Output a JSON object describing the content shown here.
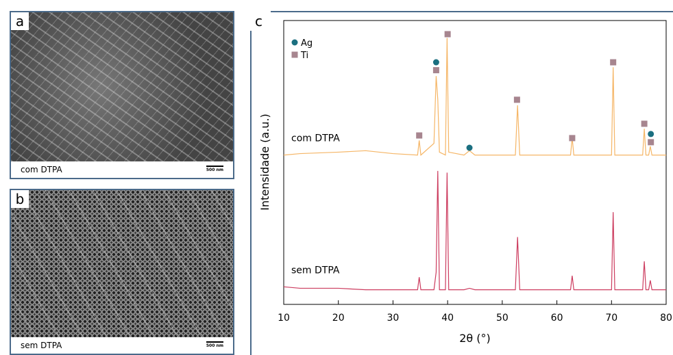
{
  "panels": [
    {
      "label": "a",
      "caption": "com DTPA",
      "scale_bar": "500 nm"
    },
    {
      "label": "b",
      "caption": "sem DTPA",
      "scale_bar": "500 nm"
    }
  ],
  "chart_data": {
    "type": "line",
    "panel_label": "c",
    "x_label": "2θ (°)",
    "y_label": "Intensidade (a.u.)",
    "xlim": [
      10,
      80
    ],
    "xticks": [
      10,
      20,
      30,
      40,
      50,
      60,
      70,
      80
    ],
    "ylim": [
      0,
      100
    ],
    "x": [
      10,
      13,
      20,
      25,
      30,
      34.5,
      34.8,
      35.1,
      37.5,
      37.9,
      38.2,
      38.5,
      39.6,
      39.9,
      40.2,
      43,
      44,
      45,
      52.4,
      52.8,
      53.2,
      62.5,
      62.8,
      63.1,
      70,
      70.3,
      70.6,
      75.7,
      76,
      76.3,
      76.8,
      77.1,
      77.4,
      80
    ],
    "series": [
      {
        "name": "com DTPA",
        "color": "#f5b565",
        "values": [
          51,
          51.5,
          52,
          52.5,
          51.5,
          51,
          56,
          51,
          55,
          78,
          70,
          52,
          51,
          91,
          52,
          51,
          52.5,
          51,
          51,
          68,
          51,
          51,
          57,
          51,
          51,
          81,
          51,
          51,
          60,
          51,
          51,
          54,
          51,
          51
        ]
      },
      {
        "name": "sem DTPA",
        "color": "#cc3b5e",
        "values": [
          6,
          5.5,
          5.5,
          5,
          5,
          5,
          9.3,
          5,
          5,
          11,
          45.6,
          5,
          5,
          45,
          5,
          5,
          5.5,
          5,
          5,
          23,
          5,
          5,
          9.8,
          5,
          5,
          31.5,
          5,
          5,
          14.7,
          5,
          5,
          8.2,
          5,
          5
        ]
      }
    ],
    "markers": [
      {
        "name": "Ag",
        "color": "#1b6f80",
        "shape": "circle",
        "x": [
          37.9,
          44,
          77.2
        ],
        "y": [
          82.7,
          53.5,
          58.2
        ]
      },
      {
        "name": "Ti",
        "color": "#a7858f",
        "shape": "square",
        "x": [
          34.8,
          37.9,
          40,
          52.7,
          62.8,
          70.3,
          76,
          77.2
        ],
        "y": [
          57.7,
          80,
          92.3,
          69.9,
          56.8,
          82.7,
          61.7,
          55.4
        ]
      }
    ]
  }
}
